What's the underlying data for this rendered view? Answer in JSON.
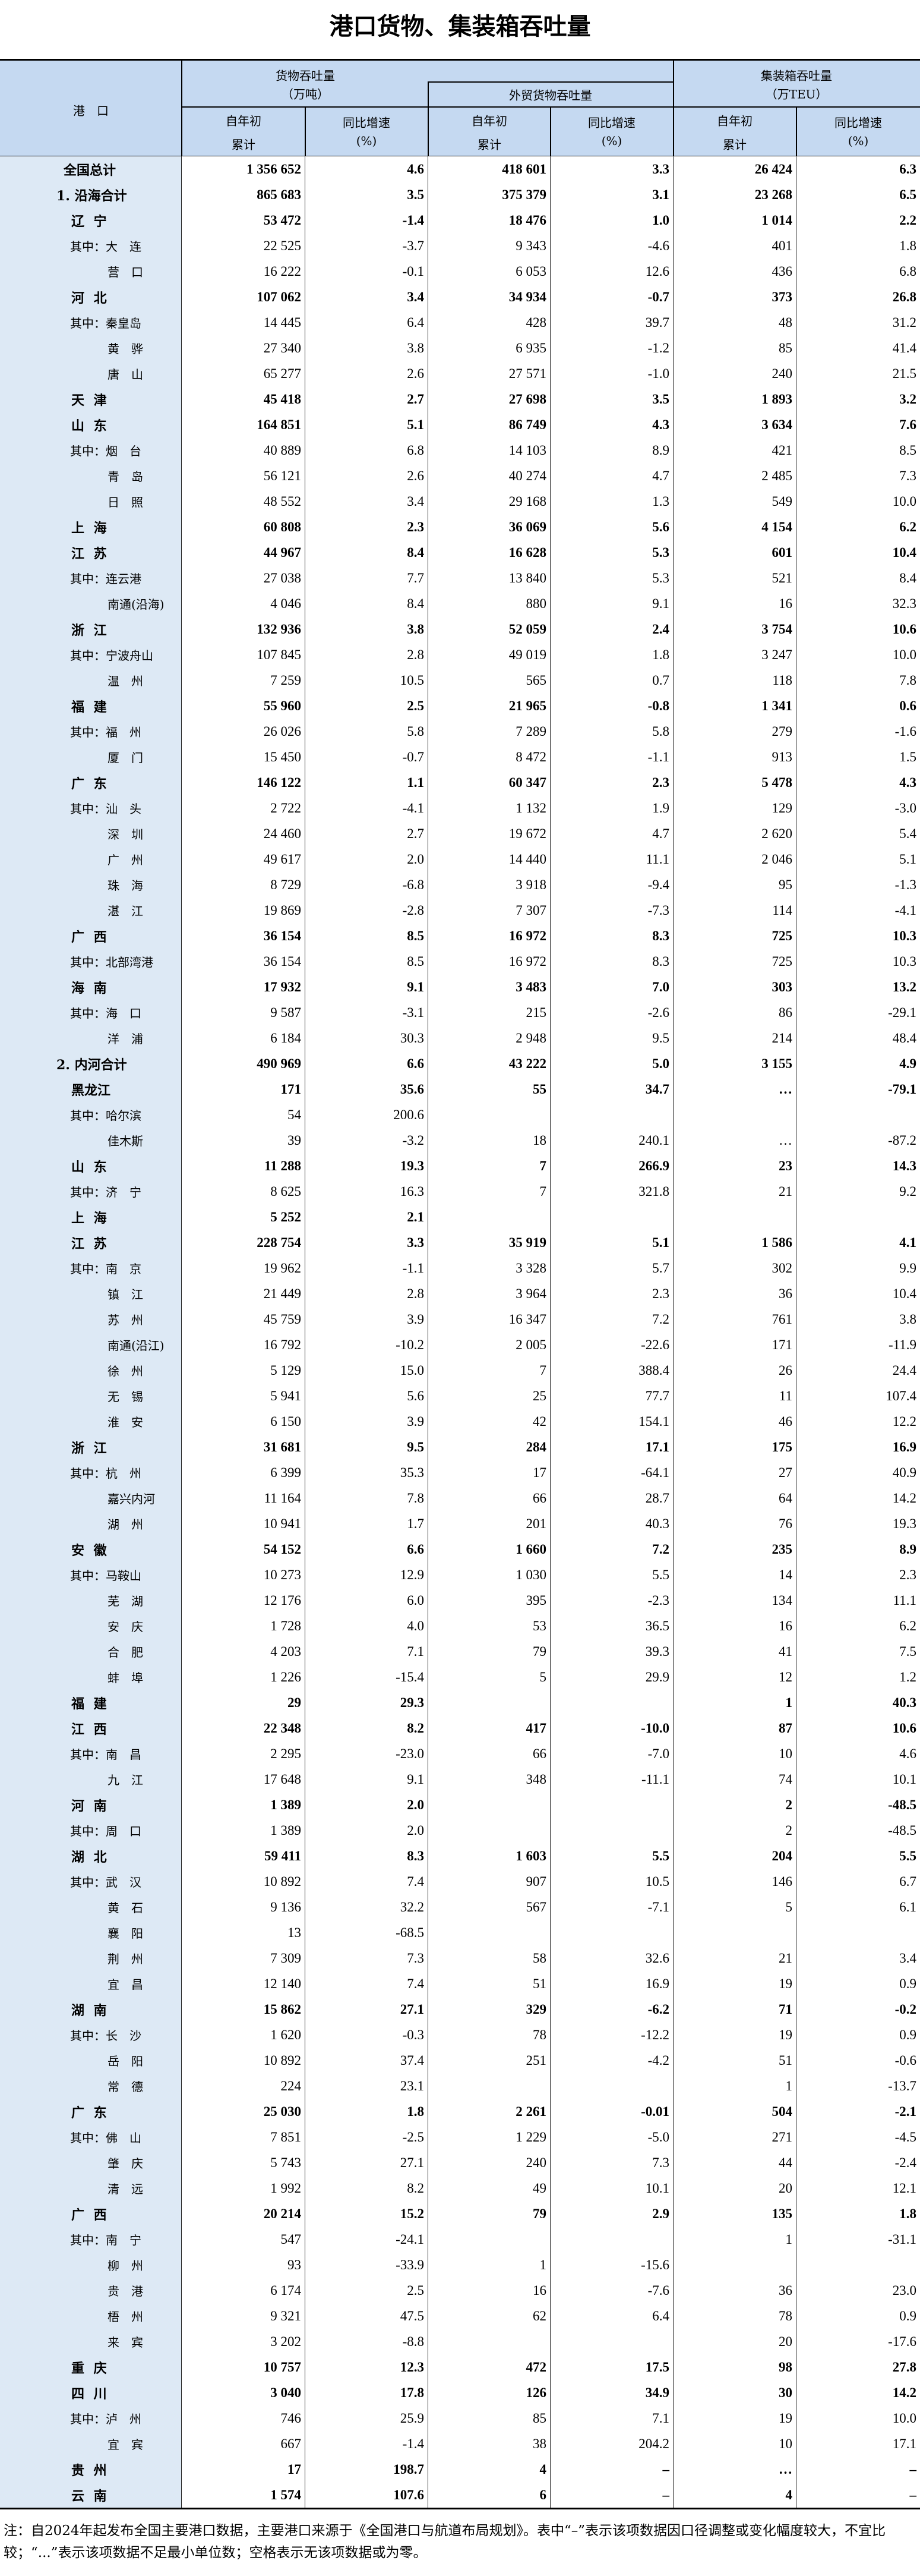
{
  "title": "港口货物、集装箱吞吐量",
  "header": {
    "port": "港　口",
    "cargo_title": "货物吞吐量",
    "cargo_unit": "（万吨）",
    "foreign_title": "外贸货物吞吐量",
    "container_title": "集装箱吞吐量",
    "container_unit": "（万TEU）",
    "ytd_line1": "自年初",
    "ytd_line2": "累计",
    "yoy_line1": "同比增速",
    "yoy_line2": "(%)"
  },
  "table": {
    "rows": [
      [
        "全国总计",
        "t",
        "1 356 652",
        "4.6",
        "418 601",
        "3.3",
        "26 424",
        "6.3"
      ],
      [
        "1. 沿海合计",
        "g",
        "865 683",
        "3.5",
        "375 379",
        "3.1",
        "23 268",
        "6.5"
      ],
      [
        "辽 宁",
        "p",
        "53 472",
        "-1.4",
        "18 476",
        "1.0",
        "1 014",
        "2.2"
      ],
      [
        "其中：大　连",
        "s1",
        "22 525",
        "-3.7",
        "9 343",
        "-4.6",
        "401",
        "1.8"
      ],
      [
        "营　口",
        "s",
        "16 222",
        "-0.1",
        "6 053",
        "12.6",
        "436",
        "6.8"
      ],
      [
        "河 北",
        "p",
        "107 062",
        "3.4",
        "34 934",
        "-0.7",
        "373",
        "26.8"
      ],
      [
        "其中：秦皇岛",
        "s1",
        "14 445",
        "6.4",
        "428",
        "39.7",
        "48",
        "31.2"
      ],
      [
        "黄　骅",
        "s",
        "27 340",
        "3.8",
        "6 935",
        "-1.2",
        "85",
        "41.4"
      ],
      [
        "唐　山",
        "s",
        "65 277",
        "2.6",
        "27 571",
        "-1.0",
        "240",
        "21.5"
      ],
      [
        "天 津",
        "p",
        "45 418",
        "2.7",
        "27 698",
        "3.5",
        "1 893",
        "3.2"
      ],
      [
        "山 东",
        "p",
        "164 851",
        "5.1",
        "86 749",
        "4.3",
        "3 634",
        "7.6"
      ],
      [
        "其中：烟　台",
        "s1",
        "40 889",
        "6.8",
        "14 103",
        "8.9",
        "421",
        "8.5"
      ],
      [
        "青　岛",
        "s",
        "56 121",
        "2.6",
        "40 274",
        "4.7",
        "2 485",
        "7.3"
      ],
      [
        "日　照",
        "s",
        "48 552",
        "3.4",
        "29 168",
        "1.3",
        "549",
        "10.0"
      ],
      [
        "上 海",
        "p",
        "60 808",
        "2.3",
        "36 069",
        "5.6",
        "4 154",
        "6.2"
      ],
      [
        "江 苏",
        "p",
        "44 967",
        "8.4",
        "16 628",
        "5.3",
        "601",
        "10.4"
      ],
      [
        "其中：连云港",
        "s1",
        "27 038",
        "7.7",
        "13 840",
        "5.3",
        "521",
        "8.4"
      ],
      [
        "南通(沿海)",
        "s",
        "4 046",
        "8.4",
        "880",
        "9.1",
        "16",
        "32.3"
      ],
      [
        "浙 江",
        "p",
        "132 936",
        "3.8",
        "52 059",
        "2.4",
        "3 754",
        "10.6"
      ],
      [
        "其中：宁波舟山",
        "s1",
        "107 845",
        "2.8",
        "49 019",
        "1.8",
        "3 247",
        "10.0"
      ],
      [
        "温　州",
        "s",
        "7 259",
        "10.5",
        "565",
        "0.7",
        "118",
        "7.8"
      ],
      [
        "福 建",
        "p",
        "55 960",
        "2.5",
        "21 965",
        "-0.8",
        "1 341",
        "0.6"
      ],
      [
        "其中：福　州",
        "s1",
        "26 026",
        "5.8",
        "7 289",
        "5.8",
        "279",
        "-1.6"
      ],
      [
        "厦　门",
        "s",
        "15 450",
        "-0.7",
        "8 472",
        "-1.1",
        "913",
        "1.5"
      ],
      [
        "广 东",
        "p",
        "146 122",
        "1.1",
        "60 347",
        "2.3",
        "5 478",
        "4.3"
      ],
      [
        "其中：汕　头",
        "s1",
        "2 722",
        "-4.1",
        "1 132",
        "1.9",
        "129",
        "-3.0"
      ],
      [
        "深　圳",
        "s",
        "24 460",
        "2.7",
        "19 672",
        "4.7",
        "2 620",
        "5.4"
      ],
      [
        "广　州",
        "s",
        "49 617",
        "2.0",
        "14 440",
        "11.1",
        "2 046",
        "5.1"
      ],
      [
        "珠　海",
        "s",
        "8 729",
        "-6.8",
        "3 918",
        "-9.4",
        "95",
        "-1.3"
      ],
      [
        "湛　江",
        "s",
        "19 869",
        "-2.8",
        "7 307",
        "-7.3",
        "114",
        "-4.1"
      ],
      [
        "广 西",
        "p",
        "36 154",
        "8.5",
        "16 972",
        "8.3",
        "725",
        "10.3"
      ],
      [
        "其中：北部湾港",
        "s1",
        "36 154",
        "8.5",
        "16 972",
        "8.3",
        "725",
        "10.3"
      ],
      [
        "海 南",
        "p",
        "17 932",
        "9.1",
        "3 483",
        "7.0",
        "303",
        "13.2"
      ],
      [
        "其中：海　口",
        "s1",
        "9 587",
        "-3.1",
        "215",
        "-2.6",
        "86",
        "-29.1"
      ],
      [
        "洋　浦",
        "s",
        "6 184",
        "30.3",
        "2 948",
        "9.5",
        "214",
        "48.4"
      ],
      [
        "2. 内河合计",
        "g",
        "490 969",
        "6.6",
        "43 222",
        "5.0",
        "3 155",
        "4.9"
      ],
      [
        "黑龙江",
        "p",
        "171",
        "35.6",
        "55",
        "34.7",
        "…",
        "-79.1"
      ],
      [
        "其中：哈尔滨",
        "s1",
        "54",
        "200.6",
        "",
        "",
        "",
        ""
      ],
      [
        "佳木斯",
        "s",
        "39",
        "-3.2",
        "18",
        "240.1",
        "…",
        "-87.2"
      ],
      [
        "山 东",
        "p",
        "11 288",
        "19.3",
        "7",
        "266.9",
        "23",
        "14.3"
      ],
      [
        "其中：济　宁",
        "s1",
        "8 625",
        "16.3",
        "7",
        "321.8",
        "21",
        "9.2"
      ],
      [
        "上 海",
        "p",
        "5 252",
        "2.1",
        "",
        "",
        "",
        ""
      ],
      [
        "江 苏",
        "p",
        "228 754",
        "3.3",
        "35 919",
        "5.1",
        "1 586",
        "4.1"
      ],
      [
        "其中：南　京",
        "s1",
        "19 962",
        "-1.1",
        "3 328",
        "5.7",
        "302",
        "9.9"
      ],
      [
        "镇　江",
        "s",
        "21 449",
        "2.8",
        "3 964",
        "2.3",
        "36",
        "10.4"
      ],
      [
        "苏　州",
        "s",
        "45 759",
        "3.9",
        "16 347",
        "7.2",
        "761",
        "3.8"
      ],
      [
        "南通(沿江)",
        "s",
        "16 792",
        "-10.2",
        "2 005",
        "-22.6",
        "171",
        "-11.9"
      ],
      [
        "徐　州",
        "s",
        "5 129",
        "15.0",
        "7",
        "388.4",
        "26",
        "24.4"
      ],
      [
        "无　锡",
        "s",
        "5 941",
        "5.6",
        "25",
        "77.7",
        "11",
        "107.4"
      ],
      [
        "淮　安",
        "s",
        "6 150",
        "3.9",
        "42",
        "154.1",
        "46",
        "12.2"
      ],
      [
        "浙 江",
        "p",
        "31 681",
        "9.5",
        "284",
        "17.1",
        "175",
        "16.9"
      ],
      [
        "其中：杭　州",
        "s1",
        "6 399",
        "35.3",
        "17",
        "-64.1",
        "27",
        "40.9"
      ],
      [
        "嘉兴内河",
        "s",
        "11 164",
        "7.8",
        "66",
        "28.7",
        "64",
        "14.2"
      ],
      [
        "湖　州",
        "s",
        "10 941",
        "1.7",
        "201",
        "40.3",
        "76",
        "19.3"
      ],
      [
        "安 徽",
        "p",
        "54 152",
        "6.6",
        "1 660",
        "7.2",
        "235",
        "8.9"
      ],
      [
        "其中：马鞍山",
        "s1",
        "10 273",
        "12.9",
        "1 030",
        "5.5",
        "14",
        "2.3"
      ],
      [
        "芜　湖",
        "s",
        "12 176",
        "6.0",
        "395",
        "-2.3",
        "134",
        "11.1"
      ],
      [
        "安　庆",
        "s",
        "1 728",
        "4.0",
        "53",
        "36.5",
        "16",
        "6.2"
      ],
      [
        "合　肥",
        "s",
        "4 203",
        "7.1",
        "79",
        "39.3",
        "41",
        "7.5"
      ],
      [
        "蚌　埠",
        "s",
        "1 226",
        "-15.4",
        "5",
        "29.9",
        "12",
        "1.2"
      ],
      [
        "福 建",
        "p",
        "29",
        "29.3",
        "",
        "",
        "1",
        "40.3"
      ],
      [
        "江 西",
        "p",
        "22 348",
        "8.2",
        "417",
        "-10.0",
        "87",
        "10.6"
      ],
      [
        "其中：南　昌",
        "s1",
        "2 295",
        "-23.0",
        "66",
        "-7.0",
        "10",
        "4.6"
      ],
      [
        "九　江",
        "s",
        "17 648",
        "9.1",
        "348",
        "-11.1",
        "74",
        "10.1"
      ],
      [
        "河 南",
        "p",
        "1 389",
        "2.0",
        "",
        "",
        "2",
        "-48.5"
      ],
      [
        "其中：周　口",
        "s1",
        "1 389",
        "2.0",
        "",
        "",
        "2",
        "-48.5"
      ],
      [
        "湖 北",
        "p",
        "59 411",
        "8.3",
        "1 603",
        "5.5",
        "204",
        "5.5"
      ],
      [
        "其中：武　汉",
        "s1",
        "10 892",
        "7.4",
        "907",
        "10.5",
        "146",
        "6.7"
      ],
      [
        "黄　石",
        "s",
        "9 136",
        "32.2",
        "567",
        "-7.1",
        "5",
        "6.1"
      ],
      [
        "襄　阳",
        "s",
        "13",
        "-68.5",
        "",
        "",
        "",
        ""
      ],
      [
        "荆　州",
        "s",
        "7 309",
        "7.3",
        "58",
        "32.6",
        "21",
        "3.4"
      ],
      [
        "宜　昌",
        "s",
        "12 140",
        "7.4",
        "51",
        "16.9",
        "19",
        "0.9"
      ],
      [
        "湖 南",
        "p",
        "15 862",
        "27.1",
        "329",
        "-6.2",
        "71",
        "-0.2"
      ],
      [
        "其中：长　沙",
        "s1",
        "1 620",
        "-0.3",
        "78",
        "-12.2",
        "19",
        "0.9"
      ],
      [
        "岳　阳",
        "s",
        "10 892",
        "37.4",
        "251",
        "-4.2",
        "51",
        "-0.6"
      ],
      [
        "常　德",
        "s",
        "224",
        "23.1",
        "",
        "",
        "1",
        "-13.7"
      ],
      [
        "广 东",
        "p",
        "25 030",
        "1.8",
        "2 261",
        "-0.01",
        "504",
        "-2.1"
      ],
      [
        "其中：佛　山",
        "s1",
        "7 851",
        "-2.5",
        "1 229",
        "-5.0",
        "271",
        "-4.5"
      ],
      [
        "肇　庆",
        "s",
        "5 743",
        "27.1",
        "240",
        "7.3",
        "44",
        "-2.4"
      ],
      [
        "清　远",
        "s",
        "1 992",
        "8.2",
        "49",
        "10.1",
        "20",
        "12.1"
      ],
      [
        "广 西",
        "p",
        "20 214",
        "15.2",
        "79",
        "2.9",
        "135",
        "1.8"
      ],
      [
        "其中：南　宁",
        "s1",
        "547",
        "-24.1",
        "",
        "",
        "1",
        "-31.1"
      ],
      [
        "柳　州",
        "s",
        "93",
        "-33.9",
        "1",
        "-15.6",
        "",
        ""
      ],
      [
        "贵　港",
        "s",
        "6 174",
        "2.5",
        "16",
        "-7.6",
        "36",
        "23.0"
      ],
      [
        "梧　州",
        "s",
        "9 321",
        "47.5",
        "62",
        "6.4",
        "78",
        "0.9"
      ],
      [
        "来　宾",
        "s",
        "3 202",
        "-8.8",
        "",
        "",
        "20",
        "-17.6"
      ],
      [
        "重 庆",
        "p",
        "10 757",
        "12.3",
        "472",
        "17.5",
        "98",
        "27.8"
      ],
      [
        "四 川",
        "p",
        "3 040",
        "17.8",
        "126",
        "34.9",
        "30",
        "14.2"
      ],
      [
        "其中：泸　州",
        "s1",
        "746",
        "25.9",
        "85",
        "7.1",
        "19",
        "10.0"
      ],
      [
        "宜　宾",
        "s",
        "667",
        "-1.4",
        "38",
        "204.2",
        "10",
        "17.1"
      ],
      [
        "贵 州",
        "p",
        "17",
        "198.7",
        "4",
        "–",
        "…",
        "–"
      ],
      [
        "云 南",
        "p",
        "1 574",
        "107.6",
        "6",
        "–",
        "4",
        "–"
      ]
    ]
  },
  "note": "注：自2024年起发布全国主要港口数据，主要港口来源于《全国港口与航道布局规划》。表中“–”表示该项数据因口径调整或变化幅度较大，不宜比较；“...”表示该项数据不足最小单位数；空格表示无该项数据或为零。",
  "colors": {
    "header_bg": "#c5d9f1",
    "port_column_bg": "#dde9f5"
  }
}
